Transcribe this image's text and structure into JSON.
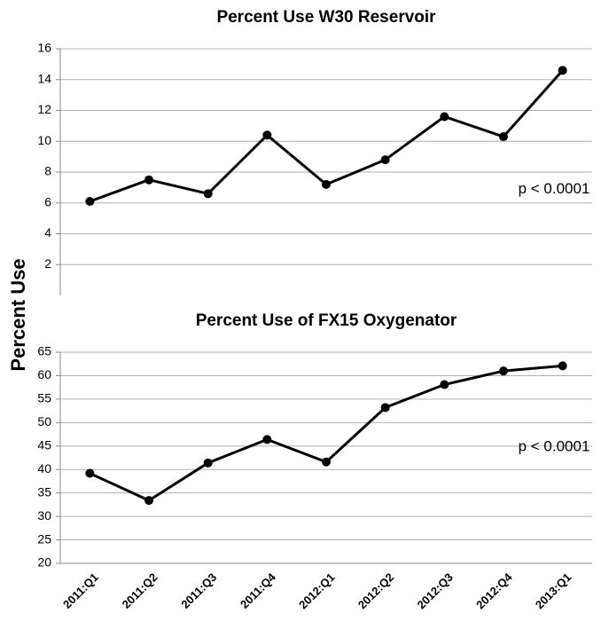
{
  "y_label": "Percent Use",
  "chart_data": [
    {
      "type": "line",
      "title": "Percent Use W30 Reservoir",
      "values": [
        6.1,
        7.5,
        6.6,
        10.4,
        7.2,
        8.8,
        11.6,
        10.3,
        14.6
      ],
      "color": "#000000",
      "ylim": [
        0,
        16
      ],
      "yticks": [
        2,
        4,
        6,
        8,
        10,
        12,
        14,
        16
      ],
      "grid": true,
      "annotation": "p < 0.0001"
    },
    {
      "type": "line",
      "title": "Percent Use of FX15 Oxygenator",
      "categories": [
        "2011:Q1",
        "2011:Q2",
        "2011:Q3",
        "2011:Q4",
        "2012:Q1",
        "2012:Q2",
        "2012:Q3",
        "2012:Q4",
        "2013:Q1"
      ],
      "values": [
        39.2,
        33.4,
        41.4,
        46.4,
        41.6,
        53.2,
        58.1,
        61,
        62.1
      ],
      "color": "#000000",
      "ylim": [
        20,
        65
      ],
      "yticks": [
        20,
        25,
        30,
        35,
        40,
        45,
        50,
        55,
        60,
        65
      ],
      "grid": true,
      "annotation": "p < 0.0001"
    }
  ]
}
